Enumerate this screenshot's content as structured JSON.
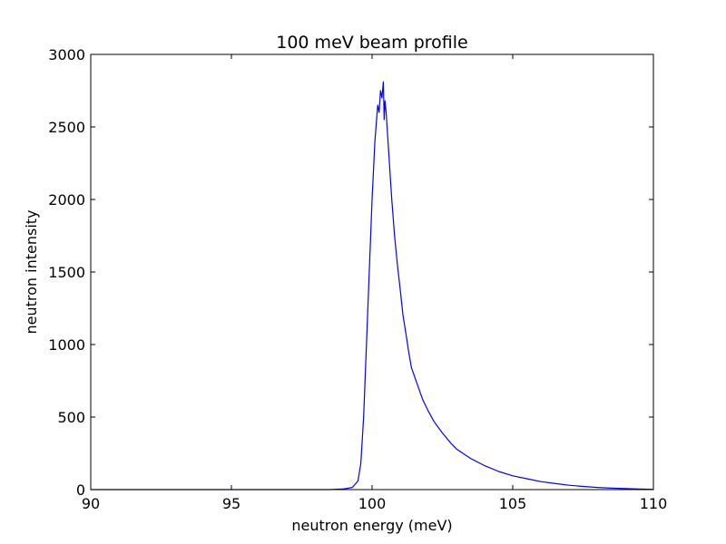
{
  "chart_data": {
    "type": "line",
    "title": "100 meV beam profile",
    "xlabel": "neutron energy (meV)",
    "ylabel": "neutron intensity",
    "xlim": [
      90,
      110
    ],
    "ylim": [
      0,
      3000
    ],
    "xticks": [
      90,
      95,
      100,
      105,
      110
    ],
    "yticks": [
      0,
      500,
      1000,
      1500,
      2000,
      2500,
      3000
    ],
    "grid": false,
    "series": [
      {
        "color": "#0000ff",
        "x": [
          90.0,
          95.0,
          98.5,
          99.0,
          99.3,
          99.5,
          99.6,
          99.7,
          99.8,
          99.9,
          100.0,
          100.1,
          100.2,
          100.25,
          100.3,
          100.35,
          100.4,
          100.43,
          100.46,
          100.5,
          100.55,
          100.6,
          100.65,
          100.7,
          100.8,
          100.9,
          101.0,
          101.1,
          101.2,
          101.3,
          101.4,
          101.6,
          101.8,
          102.0,
          102.2,
          102.5,
          102.8,
          103.0,
          103.5,
          104.0,
          104.5,
          105.0,
          105.5,
          106.0,
          106.5,
          107.0,
          107.5,
          108.0,
          108.5,
          109.0,
          109.5,
          110.0
        ],
        "y": [
          0,
          0,
          0,
          5,
          15,
          60,
          180,
          500,
          1000,
          1500,
          2000,
          2400,
          2650,
          2600,
          2750,
          2700,
          2810,
          2550,
          2680,
          2600,
          2450,
          2300,
          2150,
          2000,
          1750,
          1550,
          1380,
          1200,
          1080,
          950,
          840,
          730,
          620,
          540,
          470,
          390,
          320,
          280,
          215,
          165,
          125,
          95,
          75,
          55,
          42,
          30,
          22,
          15,
          10,
          7,
          4,
          2
        ]
      }
    ]
  }
}
